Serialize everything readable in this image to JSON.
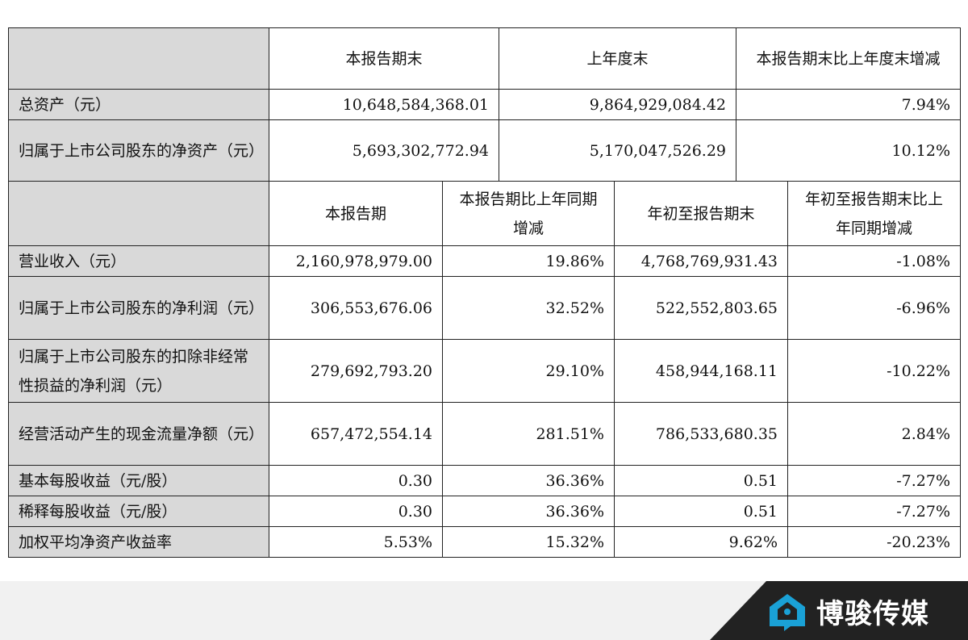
{
  "balance_section": {
    "headers": [
      "本报告期末",
      "上年度末",
      "本报告期末比上年度末增减"
    ],
    "rows": [
      {
        "label": "总资产（元）",
        "current": "10,648,584,368.01",
        "prior": "9,864,929,084.42",
        "change": "7.94%"
      },
      {
        "label": "归属于上市公司股东的净资产（元）",
        "current": "5,693,302,772.94",
        "prior": "5,170,047,526.29",
        "change": "10.12%"
      }
    ]
  },
  "income_section": {
    "headers": [
      "本报告期",
      "本报告期比上年同期增减",
      "年初至报告期末",
      "年初至报告期末比上年同期增减"
    ],
    "rows": [
      {
        "label": "营业收入（元）",
        "period": "2,160,978,979.00",
        "period_change": "19.86%",
        "ytd": "4,768,769,931.43",
        "ytd_change": "-1.08%"
      },
      {
        "label": "归属于上市公司股东的净利润（元）",
        "period": "306,553,676.06",
        "period_change": "32.52%",
        "ytd": "522,552,803.65",
        "ytd_change": "-6.96%"
      },
      {
        "label": "归属于上市公司股东的扣除非经常性损益的净利润（元）",
        "period": "279,692,793.20",
        "period_change": "29.10%",
        "ytd": "458,944,168.11",
        "ytd_change": "-10.22%"
      },
      {
        "label": "经营活动产生的现金流量净额（元）",
        "period": "657,472,554.14",
        "period_change": "281.51%",
        "ytd": "786,533,680.35",
        "ytd_change": "2.84%"
      },
      {
        "label": "基本每股收益（元/股）",
        "period": "0.30",
        "period_change": "36.36%",
        "ytd": "0.51",
        "ytd_change": "-7.27%"
      },
      {
        "label": "稀释每股收益（元/股）",
        "period": "0.30",
        "period_change": "36.36%",
        "ytd": "0.51",
        "ytd_change": "-7.27%"
      },
      {
        "label": "加权平均净资产收益率",
        "period": "5.53%",
        "period_change": "15.32%",
        "ytd": "9.62%",
        "ytd_change": "-20.23%"
      }
    ]
  },
  "watermark": {
    "brand_text": "博骏传媒",
    "icon": "house-speech-icon",
    "brand_color": "#1aa1d6"
  }
}
